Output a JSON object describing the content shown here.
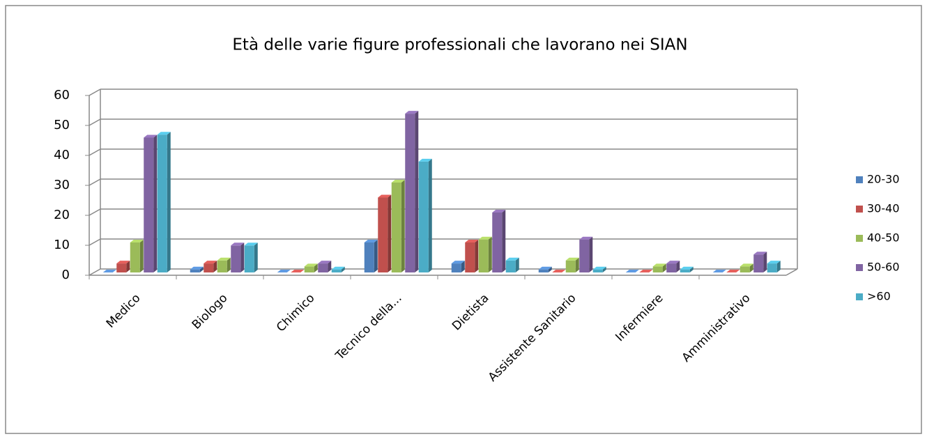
{
  "chart_data": {
    "type": "bar3d",
    "title": "Età delle varie figure professionali che lavorano nei SIAN",
    "categories": [
      "Medico",
      "Biologo",
      "Chimico",
      "Tecnico della...",
      "Dietista",
      "Assistente Sanitario",
      "Infermiere",
      "Amministrativo"
    ],
    "series": [
      {
        "name": "20-30",
        "color": "#4f81bd",
        "values": [
          0,
          1,
          0,
          10,
          3,
          1,
          0,
          0
        ]
      },
      {
        "name": "30-40",
        "color": "#c0504d",
        "values": [
          3,
          3,
          0,
          25,
          10,
          0,
          0,
          0
        ]
      },
      {
        "name": "40-50",
        "color": "#9bbb59",
        "values": [
          10,
          4,
          2,
          30,
          11,
          4,
          2,
          2
        ]
      },
      {
        "name": "50-60",
        "color": "#8064a2",
        "values": [
          45,
          9,
          3,
          53,
          20,
          11,
          3,
          6
        ]
      },
      {
        "name": ">60",
        "color": "#4bacc6",
        "values": [
          46,
          9,
          1,
          37,
          4,
          1,
          1,
          3
        ]
      }
    ],
    "ylim": [
      0,
      60
    ],
    "yticks": [
      0,
      10,
      20,
      30,
      40,
      50,
      60
    ],
    "grid": true,
    "legend": "right"
  }
}
